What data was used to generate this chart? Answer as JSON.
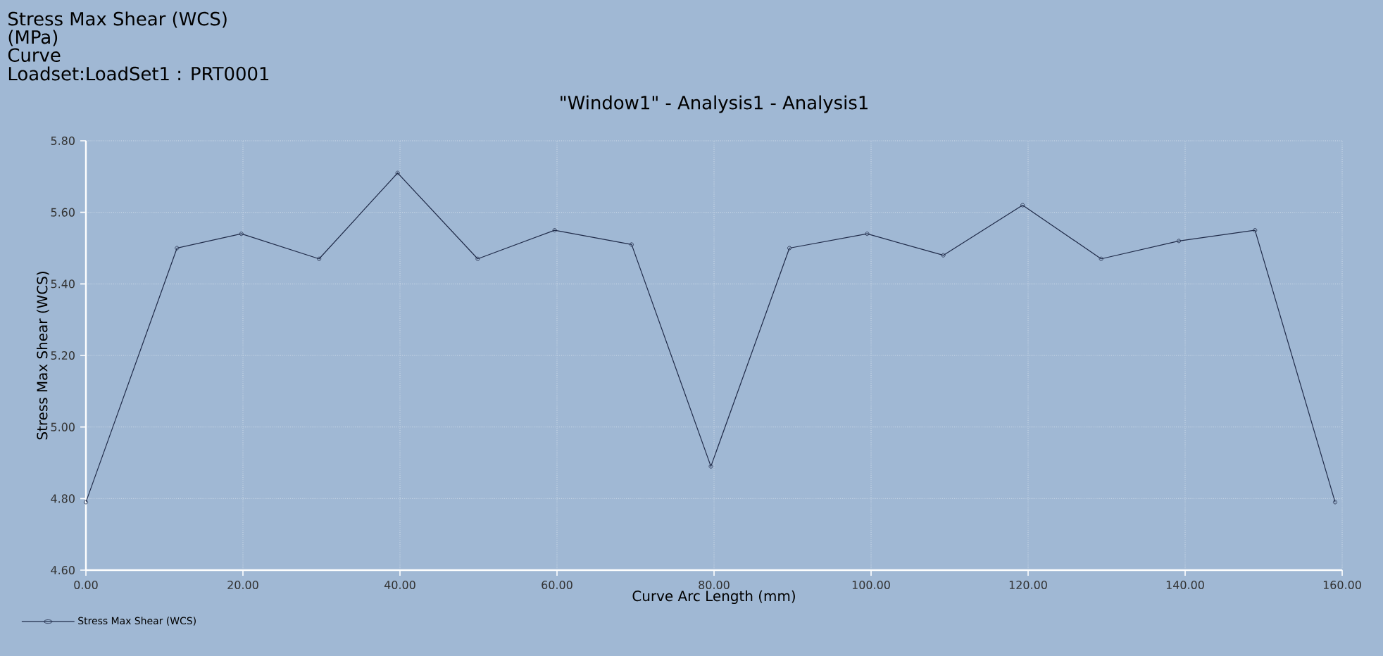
{
  "chart_data": {
    "type": "line",
    "title": "\"Window1\" - Analysis1 - Analysis1",
    "annotations": [
      "Stress Max Shear (WCS)",
      "(MPa)",
      "Curve",
      "Loadset:LoadSet1 :  PRT0001"
    ],
    "xlabel": "Curve Arc Length (mm)",
    "ylabel": "Stress Max Shear (WCS)",
    "x": [
      0,
      11.6,
      19.8,
      29.7,
      39.7,
      49.9,
      59.7,
      69.5,
      79.6,
      89.6,
      99.5,
      109.2,
      119.3,
      129.3,
      139.2,
      148.9,
      159.1
    ],
    "series": [
      {
        "name": "Stress Max Shear (WCS)",
        "color": "#1f2a48",
        "values": [
          4.79,
          5.5,
          5.54,
          5.47,
          5.71,
          5.47,
          5.55,
          5.51,
          4.89,
          5.5,
          5.54,
          5.48,
          5.62,
          5.47,
          5.52,
          5.55,
          4.79
        ]
      }
    ],
    "xlim": [
      0,
      160
    ],
    "ylim": [
      4.6,
      5.8
    ],
    "xticks": [
      {
        "value": 0,
        "label": "0.00"
      },
      {
        "value": 20,
        "label": "20.00"
      },
      {
        "value": 40,
        "label": "40.00"
      },
      {
        "value": 60,
        "label": "60.00"
      },
      {
        "value": 80,
        "label": "80.00"
      },
      {
        "value": 100,
        "label": "100.00"
      },
      {
        "value": 120,
        "label": "120.00"
      },
      {
        "value": 140,
        "label": "140.00"
      },
      {
        "value": 160,
        "label": "160.00"
      }
    ],
    "yticks": [
      {
        "value": 4.6,
        "label": "4.60"
      },
      {
        "value": 4.8,
        "label": "4.80"
      },
      {
        "value": 5.0,
        "label": "5.00"
      },
      {
        "value": 5.2,
        "label": "5.20"
      },
      {
        "value": 5.4,
        "label": "5.40"
      },
      {
        "value": 5.6,
        "label": "5.60"
      },
      {
        "value": 5.8,
        "label": "5.80"
      }
    ],
    "grid": true,
    "legend": "bottom left",
    "marker": "circle",
    "line_style": "solid"
  }
}
